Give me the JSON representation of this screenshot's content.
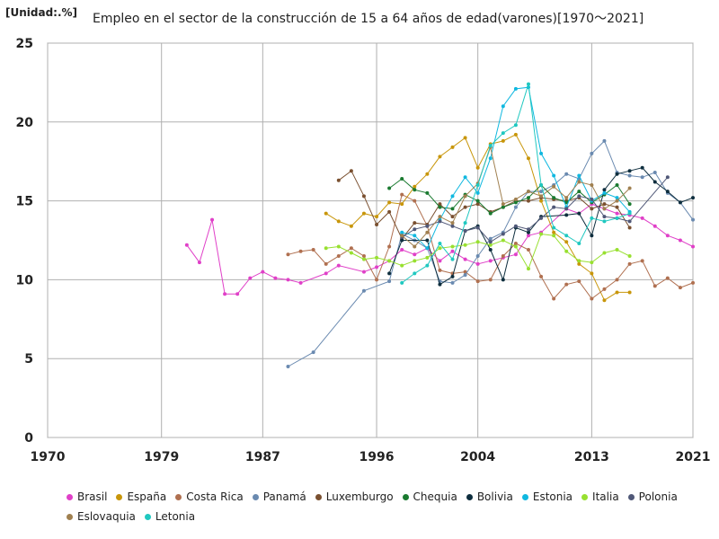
{
  "header": {
    "unit_label": "[Unidad:.%]",
    "title": "Empleo en el sector de la construcción de 15 a 64 años de edad(varones)[1970～2021]"
  },
  "chart_data": {
    "type": "line",
    "title": "Empleo en el sector de la construcción de 15 a 64 años de edad(varones)[1970～2021]",
    "ylabel": "[Unidad:.%]",
    "xlim": [
      1970,
      2021
    ],
    "ylim": [
      0,
      25
    ],
    "x_ticks": [
      1970,
      1979,
      1987,
      1996,
      2004,
      2013,
      2021
    ],
    "y_ticks": [
      0,
      5,
      10,
      15,
      20,
      25
    ],
    "grid": true,
    "legend_position": "bottom",
    "series": [
      {
        "name": "Brasil",
        "color": "#e040c8",
        "points": [
          [
            1981,
            12.2
          ],
          [
            1982,
            11.1
          ],
          [
            1983,
            13.8
          ],
          [
            1984,
            9.1
          ],
          [
            1985,
            9.1
          ],
          [
            1986,
            10.1
          ],
          [
            1987,
            10.5
          ],
          [
            1988,
            10.1
          ],
          [
            1989,
            10.0
          ],
          [
            1990,
            9.8
          ],
          [
            1992,
            10.4
          ],
          [
            1993,
            10.9
          ],
          [
            1995,
            10.5
          ],
          [
            1996,
            10.8
          ],
          [
            1997,
            11.2
          ],
          [
            1998,
            11.9
          ],
          [
            1999,
            11.6
          ],
          [
            2000,
            12.0
          ],
          [
            2001,
            11.2
          ],
          [
            2002,
            11.8
          ],
          [
            2003,
            11.3
          ],
          [
            2004,
            11.0
          ],
          [
            2005,
            11.2
          ],
          [
            2006,
            11.4
          ],
          [
            2007,
            11.6
          ],
          [
            2008,
            12.8
          ],
          [
            2009,
            13.0
          ],
          [
            2011,
            14.5
          ],
          [
            2012,
            14.2
          ],
          [
            2013,
            14.8
          ],
          [
            2014,
            14.5
          ],
          [
            2015,
            14.2
          ],
          [
            2016,
            14.1
          ],
          [
            2017,
            13.9
          ],
          [
            2018,
            13.4
          ],
          [
            2019,
            12.8
          ],
          [
            2020,
            12.5
          ],
          [
            2021,
            12.1
          ]
        ]
      },
      {
        "name": "España",
        "color": "#c8960a",
        "points": [
          [
            1992,
            14.2
          ],
          [
            1993,
            13.7
          ],
          [
            1994,
            13.4
          ],
          [
            1995,
            14.2
          ],
          [
            1996,
            14.0
          ],
          [
            1997,
            14.9
          ],
          [
            1998,
            14.8
          ],
          [
            1999,
            15.9
          ],
          [
            2000,
            16.7
          ],
          [
            2001,
            17.8
          ],
          [
            2002,
            18.4
          ],
          [
            2003,
            19.0
          ],
          [
            2004,
            17.1
          ],
          [
            2005,
            18.6
          ],
          [
            2006,
            18.8
          ],
          [
            2007,
            19.2
          ],
          [
            2008,
            17.7
          ],
          [
            2009,
            15.0
          ],
          [
            2010,
            13.0
          ],
          [
            2011,
            12.4
          ],
          [
            2012,
            11.0
          ],
          [
            2013,
            10.4
          ],
          [
            2014,
            8.7
          ],
          [
            2015,
            9.2
          ],
          [
            2016,
            9.2
          ]
        ]
      },
      {
        "name": "Costa Rica",
        "color": "#b07050",
        "points": [
          [
            1989,
            11.6
          ],
          [
            1990,
            11.8
          ],
          [
            1991,
            11.9
          ],
          [
            1992,
            11.0
          ],
          [
            1993,
            11.5
          ],
          [
            1994,
            12.0
          ],
          [
            1995,
            11.5
          ],
          [
            1996,
            10.0
          ],
          [
            1997,
            12.1
          ],
          [
            1998,
            15.4
          ],
          [
            1999,
            15.0
          ],
          [
            2000,
            13.4
          ],
          [
            2001,
            10.6
          ],
          [
            2002,
            10.4
          ],
          [
            2003,
            10.5
          ],
          [
            2004,
            9.9
          ],
          [
            2005,
            10.0
          ],
          [
            2006,
            11.5
          ],
          [
            2007,
            12.3
          ],
          [
            2008,
            11.9
          ],
          [
            2009,
            10.2
          ],
          [
            2010,
            8.8
          ],
          [
            2011,
            9.7
          ],
          [
            2012,
            9.9
          ],
          [
            2013,
            8.8
          ],
          [
            2014,
            9.4
          ],
          [
            2015,
            10.0
          ],
          [
            2016,
            11.0
          ],
          [
            2017,
            11.2
          ],
          [
            2018,
            9.6
          ],
          [
            2019,
            10.1
          ],
          [
            2020,
            9.5
          ],
          [
            2021,
            9.8
          ]
        ]
      },
      {
        "name": "Panamá",
        "color": "#6a8ab0",
        "points": [
          [
            1989,
            4.5
          ],
          [
            1991,
            5.4
          ],
          [
            1995,
            9.3
          ],
          [
            1997,
            9.9
          ],
          [
            1998,
            12.9
          ],
          [
            1999,
            12.5
          ],
          [
            2000,
            12.0
          ],
          [
            2001,
            9.9
          ],
          [
            2002,
            9.8
          ],
          [
            2003,
            10.3
          ],
          [
            2004,
            11.5
          ],
          [
            2005,
            12.6
          ],
          [
            2006,
            13.0
          ],
          [
            2007,
            14.6
          ],
          [
            2008,
            15.6
          ],
          [
            2009,
            15.6
          ],
          [
            2010,
            16.0
          ],
          [
            2011,
            16.7
          ],
          [
            2012,
            16.4
          ],
          [
            2013,
            18.0
          ],
          [
            2014,
            18.8
          ],
          [
            2015,
            16.8
          ],
          [
            2016,
            16.6
          ],
          [
            2017,
            16.5
          ],
          [
            2018,
            16.8
          ],
          [
            2019,
            15.5
          ],
          [
            2020,
            14.9
          ],
          [
            2021,
            13.8
          ]
        ]
      },
      {
        "name": "Luxemburgo",
        "color": "#7a5030",
        "points": [
          [
            1993,
            16.3
          ],
          [
            1994,
            16.9
          ],
          [
            1995,
            15.3
          ],
          [
            1996,
            13.5
          ],
          [
            1997,
            14.3
          ],
          [
            1998,
            12.6
          ],
          [
            1999,
            13.6
          ],
          [
            2000,
            13.5
          ],
          [
            2001,
            14.8
          ],
          [
            2002,
            14.0
          ],
          [
            2003,
            14.6
          ],
          [
            2004,
            14.8
          ],
          [
            2005,
            14.3
          ],
          [
            2006,
            14.6
          ],
          [
            2007,
            15.0
          ],
          [
            2008,
            15.0
          ],
          [
            2009,
            15.2
          ],
          [
            2010,
            15.1
          ],
          [
            2011,
            15.0
          ],
          [
            2012,
            15.2
          ],
          [
            2013,
            14.5
          ],
          [
            2014,
            14.8
          ],
          [
            2015,
            14.6
          ],
          [
            2016,
            13.3
          ]
        ]
      },
      {
        "name": "Chequia",
        "color": "#1a7a30",
        "points": [
          [
            1997,
            15.8
          ],
          [
            1998,
            16.4
          ],
          [
            1999,
            15.7
          ],
          [
            2000,
            15.5
          ],
          [
            2001,
            14.6
          ],
          [
            2002,
            14.5
          ],
          [
            2003,
            15.4
          ],
          [
            2004,
            15.0
          ],
          [
            2005,
            14.2
          ],
          [
            2006,
            14.6
          ],
          [
            2007,
            14.9
          ],
          [
            2008,
            15.2
          ],
          [
            2009,
            16.0
          ],
          [
            2010,
            15.2
          ],
          [
            2011,
            14.9
          ],
          [
            2012,
            15.6
          ],
          [
            2013,
            14.9
          ],
          [
            2014,
            15.4
          ],
          [
            2015,
            16.0
          ],
          [
            2016,
            14.8
          ]
        ]
      },
      {
        "name": "Bolivia",
        "color": "#0e2e3e",
        "points": [
          [
            1997,
            10.4
          ],
          [
            1998,
            12.5
          ],
          [
            2000,
            12.5
          ],
          [
            2001,
            9.7
          ],
          [
            2002,
            10.2
          ],
          [
            2003,
            13.1
          ],
          [
            2004,
            13.4
          ],
          [
            2005,
            11.9
          ],
          [
            2006,
            10.0
          ],
          [
            2007,
            13.3
          ],
          [
            2008,
            13.0
          ],
          [
            2009,
            14.0
          ],
          [
            2011,
            14.1
          ],
          [
            2012,
            14.2
          ],
          [
            2013,
            12.8
          ],
          [
            2014,
            15.7
          ],
          [
            2015,
            16.7
          ],
          [
            2016,
            16.9
          ],
          [
            2017,
            17.1
          ],
          [
            2018,
            16.2
          ],
          [
            2019,
            15.6
          ],
          [
            2020,
            14.9
          ],
          [
            2021,
            15.2
          ]
        ]
      },
      {
        "name": "Estonia",
        "color": "#10b8e0",
        "points": [
          [
            1998,
            13.0
          ],
          [
            1999,
            12.8
          ],
          [
            2000,
            12.0
          ],
          [
            2001,
            13.8
          ],
          [
            2002,
            15.3
          ],
          [
            2003,
            16.5
          ],
          [
            2004,
            15.5
          ],
          [
            2005,
            17.7
          ],
          [
            2006,
            21.0
          ],
          [
            2007,
            22.1
          ],
          [
            2008,
            22.2
          ],
          [
            2009,
            18.0
          ],
          [
            2010,
            16.6
          ],
          [
            2011,
            14.6
          ],
          [
            2012,
            16.6
          ],
          [
            2013,
            15.0
          ],
          [
            2014,
            15.5
          ],
          [
            2015,
            15.2
          ],
          [
            2016,
            14.3
          ]
        ]
      },
      {
        "name": "Italia",
        "color": "#98e030",
        "points": [
          [
            1992,
            12.0
          ],
          [
            1993,
            12.1
          ],
          [
            1994,
            11.7
          ],
          [
            1995,
            11.3
          ],
          [
            1996,
            11.4
          ],
          [
            1997,
            11.2
          ],
          [
            1998,
            10.9
          ],
          [
            1999,
            11.2
          ],
          [
            2000,
            11.4
          ],
          [
            2001,
            12.0
          ],
          [
            2002,
            12.1
          ],
          [
            2003,
            12.2
          ],
          [
            2004,
            12.4
          ],
          [
            2005,
            12.2
          ],
          [
            2006,
            12.5
          ],
          [
            2007,
            12.1
          ],
          [
            2008,
            10.7
          ],
          [
            2009,
            12.9
          ],
          [
            2010,
            12.8
          ],
          [
            2011,
            11.8
          ],
          [
            2012,
            11.2
          ],
          [
            2013,
            11.1
          ],
          [
            2014,
            11.7
          ],
          [
            2015,
            11.9
          ],
          [
            2016,
            11.5
          ]
        ]
      },
      {
        "name": "Polonia",
        "color": "#505878",
        "points": [
          [
            1998,
            12.7
          ],
          [
            1999,
            13.2
          ],
          [
            2000,
            13.4
          ],
          [
            2001,
            13.7
          ],
          [
            2002,
            13.4
          ],
          [
            2003,
            13.1
          ],
          [
            2004,
            13.3
          ],
          [
            2005,
            12.4
          ],
          [
            2006,
            12.9
          ],
          [
            2007,
            13.4
          ],
          [
            2008,
            13.2
          ],
          [
            2009,
            13.9
          ],
          [
            2010,
            14.6
          ],
          [
            2011,
            14.5
          ],
          [
            2012,
            15.3
          ],
          [
            2013,
            15.1
          ],
          [
            2014,
            14.0
          ],
          [
            2015,
            13.9
          ],
          [
            2016,
            13.7
          ],
          [
            2019,
            16.5
          ]
        ]
      },
      {
        "name": "Eslovaquia",
        "color": "#a08050",
        "points": [
          [
            1998,
            12.8
          ],
          [
            1999,
            12.1
          ],
          [
            2000,
            13.0
          ],
          [
            2001,
            14.0
          ],
          [
            2002,
            13.6
          ],
          [
            2003,
            15.3
          ],
          [
            2004,
            16.1
          ],
          [
            2005,
            18.4
          ],
          [
            2006,
            14.8
          ],
          [
            2007,
            15.1
          ],
          [
            2008,
            15.6
          ],
          [
            2009,
            15.3
          ],
          [
            2010,
            15.9
          ],
          [
            2011,
            15.2
          ],
          [
            2012,
            16.2
          ],
          [
            2013,
            16.0
          ],
          [
            2014,
            14.5
          ],
          [
            2015,
            15.0
          ],
          [
            2016,
            15.8
          ]
        ]
      },
      {
        "name": "Letonia",
        "color": "#20c8c0",
        "points": [
          [
            1998,
            9.8
          ],
          [
            1999,
            10.4
          ],
          [
            2000,
            10.9
          ],
          [
            2001,
            12.3
          ],
          [
            2002,
            11.3
          ],
          [
            2003,
            13.6
          ],
          [
            2004,
            16.0
          ],
          [
            2005,
            18.5
          ],
          [
            2006,
            19.3
          ],
          [
            2007,
            19.8
          ],
          [
            2008,
            22.4
          ],
          [
            2009,
            16.0
          ],
          [
            2010,
            13.3
          ],
          [
            2011,
            12.8
          ],
          [
            2012,
            12.3
          ],
          [
            2013,
            13.9
          ],
          [
            2014,
            13.7
          ],
          [
            2015,
            13.9
          ],
          [
            2016,
            14.2
          ]
        ]
      }
    ]
  }
}
